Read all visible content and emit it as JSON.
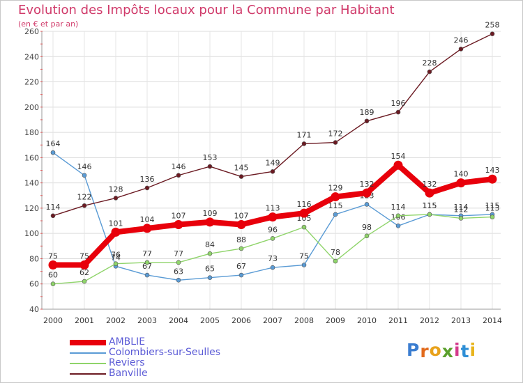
{
  "title": "Evolution des Impôts locaux pour la Commune par Habitant",
  "subtitle": "(en € et par an)",
  "logo": {
    "text": "Proxiti",
    "letters": [
      "P",
      "r",
      "o",
      "x",
      "i",
      "t",
      "i"
    ],
    "colors": [
      "#3a7dd0",
      "#e26a1c",
      "#e8a21c",
      "#5aa02c",
      "#d43a8c",
      "#2e8fd6",
      "#e8b41c"
    ]
  },
  "chart_data": {
    "type": "line",
    "title": "Evolution des Impôts locaux pour la Commune par Habitant",
    "ylabel": "(en € et par an)",
    "xlabel": "",
    "ylim": [
      40,
      260
    ],
    "yticks": [
      40,
      60,
      80,
      100,
      120,
      140,
      160,
      180,
      200,
      220,
      240,
      260
    ],
    "grid": true,
    "legend_position": "bottom-left",
    "categories": [
      "2000",
      "2001",
      "2002",
      "2003",
      "2004",
      "2005",
      "2006",
      "2007",
      "2008",
      "2009",
      "2010",
      "2011",
      "2012",
      "2013",
      "2014"
    ],
    "series": [
      {
        "name": "AMBLIE",
        "color": "#e8000b",
        "emphasis": true,
        "values": [
          75,
          75,
          101,
          104,
          107,
          109,
          107,
          113,
          116,
          129,
          132,
          154,
          132,
          140,
          143
        ]
      },
      {
        "name": "Colombiers-sur-Seulles",
        "color": "#5a9bd5",
        "emphasis": false,
        "values": [
          164,
          146,
          74,
          67,
          63,
          65,
          67,
          73,
          75,
          115,
          123,
          106,
          115,
          114,
          115
        ]
      },
      {
        "name": "Reviers",
        "color": "#8fd46a",
        "emphasis": false,
        "values": [
          60,
          62,
          76,
          77,
          77,
          84,
          88,
          96,
          105,
          78,
          98,
          114,
          115,
          112,
          113
        ]
      },
      {
        "name": "Banville",
        "color": "#6b1a22",
        "emphasis": false,
        "values": [
          114,
          122,
          128,
          136,
          146,
          153,
          145,
          149,
          171,
          172,
          189,
          196,
          228,
          246,
          258
        ]
      }
    ]
  }
}
